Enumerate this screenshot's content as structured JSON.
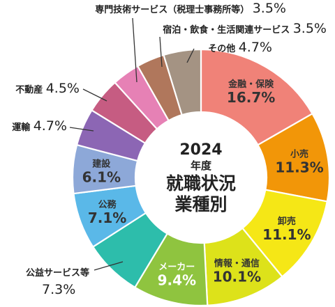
{
  "chart_data": {
    "type": "pie",
    "donut": true,
    "center_text": [
      "2024",
      "年度",
      "就職状況",
      "業種別"
    ],
    "categories": [
      "金融・保険",
      "小売",
      "卸売",
      "情報・通信",
      "メーカー",
      "公益サービス等",
      "公務",
      "建設",
      "運輸",
      "不動産",
      "専門技術サービス（税理士事務所等）",
      "宿泊・飲食・生活関連サービス",
      "その他"
    ],
    "values": [
      16.7,
      11.3,
      11.1,
      10.1,
      9.4,
      7.3,
      7.1,
      6.1,
      4.7,
      4.5,
      3.5,
      3.5,
      4.7
    ],
    "value_labels": [
      "16.7%",
      "11.3%",
      "11.1%",
      "10.1%",
      "9.4%",
      "7.3%",
      "7.1%",
      "6.1%",
      "4.7%",
      "4.5%",
      "3.5%",
      "3.5%",
      "4.7%"
    ],
    "colors": [
      "#f08278",
      "#f29608",
      "#f5e716",
      "#dde21a",
      "#8fc43f",
      "#2dbdab",
      "#5ab8e8",
      "#8da8d8",
      "#8c66b4",
      "#c65c82",
      "#e681b5",
      "#b0775c",
      "#a49383"
    ],
    "label_text_colors": [
      "#333333",
      "#333333",
      "#333333",
      "#333333",
      "#ffffff",
      "#333333",
      "#333333",
      "#333333",
      "#333333",
      "#333333",
      "#333333",
      "#333333",
      "#333333"
    ],
    "start_angle_deg": 0,
    "direction": "clockwise"
  }
}
